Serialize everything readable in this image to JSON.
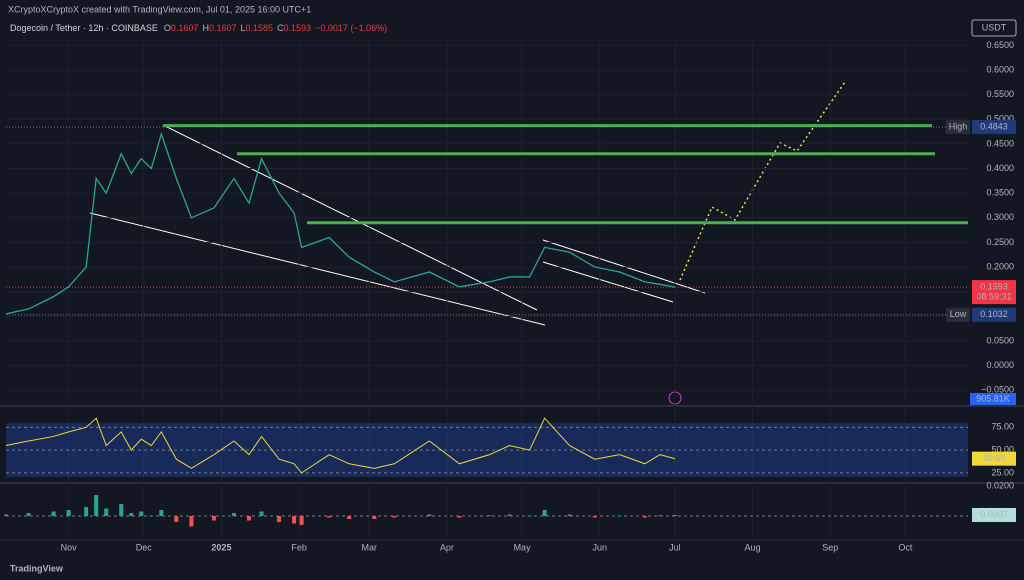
{
  "header": {
    "credit": "XCryptoXCryptoX created with TradingView.com, Jul 01, 2025 16:00 UTC+1",
    "symbol": "Dogecoin / Tether · 12h · COINBASE",
    "ohlc": [
      "O",
      "0.1607",
      "H",
      "0.1607",
      "L",
      "0.1585",
      "C",
      "0.1593",
      "−0.0017 (−1.06%)"
    ],
    "currency": "USDT",
    "footer": "TradingView"
  },
  "chart_data": {
    "type": "line",
    "color": "#26a69a",
    "x": [
      6,
      15,
      25,
      31,
      38,
      42,
      46,
      52,
      56,
      60,
      64,
      68,
      74,
      80,
      89,
      97,
      103,
      108,
      115,
      121,
      124,
      135,
      143,
      153,
      161,
      175,
      187,
      199,
      207,
      215,
      221,
      231,
      241,
      251,
      261,
      267,
      273
    ],
    "values": [
      0.105,
      0.115,
      0.14,
      0.16,
      0.2,
      0.38,
      0.35,
      0.43,
      0.39,
      0.42,
      0.4,
      0.47,
      0.38,
      0.3,
      0.32,
      0.38,
      0.33,
      0.42,
      0.35,
      0.31,
      0.24,
      0.26,
      0.22,
      0.19,
      0.17,
      0.19,
      0.16,
      0.17,
      0.18,
      0.18,
      0.24,
      0.23,
      0.2,
      0.19,
      0.17,
      0.165,
      0.1593
    ],
    "xlim": [
      6,
      390
    ],
    "xticks": [
      {
        "value": 31,
        "label": "Nov"
      },
      {
        "value": 61,
        "label": "Dec"
      },
      {
        "value": 92,
        "label": "2025"
      },
      {
        "value": 123,
        "label": "Feb"
      },
      {
        "value": 151,
        "label": "Mar"
      },
      {
        "value": 182,
        "label": "Apr"
      },
      {
        "value": 212,
        "label": "May"
      },
      {
        "value": 243,
        "label": "Jun"
      },
      {
        "value": 273,
        "label": "Jul"
      },
      {
        "value": 304,
        "label": "Aug"
      },
      {
        "value": 335,
        "label": "Sep"
      },
      {
        "value": 365,
        "label": "Oct"
      }
    ],
    "ylim": [
      -0.08,
      0.665
    ],
    "yticks": [
      {
        "value": 0.65,
        "label": "0.6500"
      },
      {
        "value": 0.6,
        "label": "0.6000"
      },
      {
        "value": 0.55,
        "label": "0.5500"
      },
      {
        "value": 0.5,
        "label": "0.5000"
      },
      {
        "value": 0.45,
        "label": "0.4500"
      },
      {
        "value": 0.4,
        "label": "0.4000"
      },
      {
        "value": 0.35,
        "label": "0.3500"
      },
      {
        "value": 0.3,
        "label": "0.3000"
      },
      {
        "value": 0.25,
        "label": "0.2500"
      },
      {
        "value": 0.2,
        "label": "0.2000"
      },
      {
        "value": 0.15,
        "label": "0.1500"
      },
      {
        "value": 0.1,
        "label": "0.1000"
      },
      {
        "value": 0.05,
        "label": "0.0500"
      },
      {
        "value": 0,
        "label": "0.0000"
      },
      {
        "value": -0.05,
        "label": "−0.0500"
      }
    ],
    "levels": {
      "color": "#4caf50",
      "values": [
        0.487,
        0.43,
        0.29
      ]
    },
    "high": {
      "name": "High",
      "value": 0.4843
    },
    "low": {
      "name": "Low",
      "value": 0.1032
    },
    "last": {
      "value": 0.1593,
      "countdown": "08:59:31",
      "color": "#f23645"
    },
    "volume_label": "905.81K",
    "rsi": {
      "color": "#f0d83a",
      "values": [
        55,
        60,
        65,
        70,
        75,
        85,
        55,
        70,
        50,
        62,
        55,
        70,
        40,
        30,
        45,
        60,
        45,
        65,
        40,
        35,
        25,
        45,
        35,
        30,
        35,
        60,
        35,
        45,
        55,
        50,
        85,
        55,
        40,
        45,
        35,
        45,
        40.6
      ],
      "value_labels": {
        "37": null
      },
      "last_label": "40.60",
      "ylim": [
        15,
        94
      ],
      "yticks": [
        {
          "value": 75,
          "label": "75.00"
        },
        {
          "value": 50,
          "label": "50.00"
        },
        {
          "value": 25,
          "label": "25.00"
        }
      ]
    },
    "macd": {
      "values": [
        0.001,
        0.002,
        0.003,
        0.004,
        0.006,
        0.014,
        0.005,
        0.008,
        0.002,
        0.003,
        0,
        0.004,
        -0.004,
        -0.007,
        -0.003,
        0.002,
        -0.003,
        0.003,
        -0.004,
        -0.005,
        -0.006,
        -0.001,
        -0.002,
        -0.002,
        -0.001,
        0.001,
        -0.001,
        0.0005,
        0.001,
        0,
        0.004,
        0.001,
        -0.001,
        0,
        -0.001,
        0.0005,
        0.0007
      ],
      "last": 0.0007,
      "ylim": [
        -0.016,
        0.0207
      ],
      "yticks": [
        {
          "value": 0.02,
          "label": "0.0200"
        }
      ]
    }
  }
}
